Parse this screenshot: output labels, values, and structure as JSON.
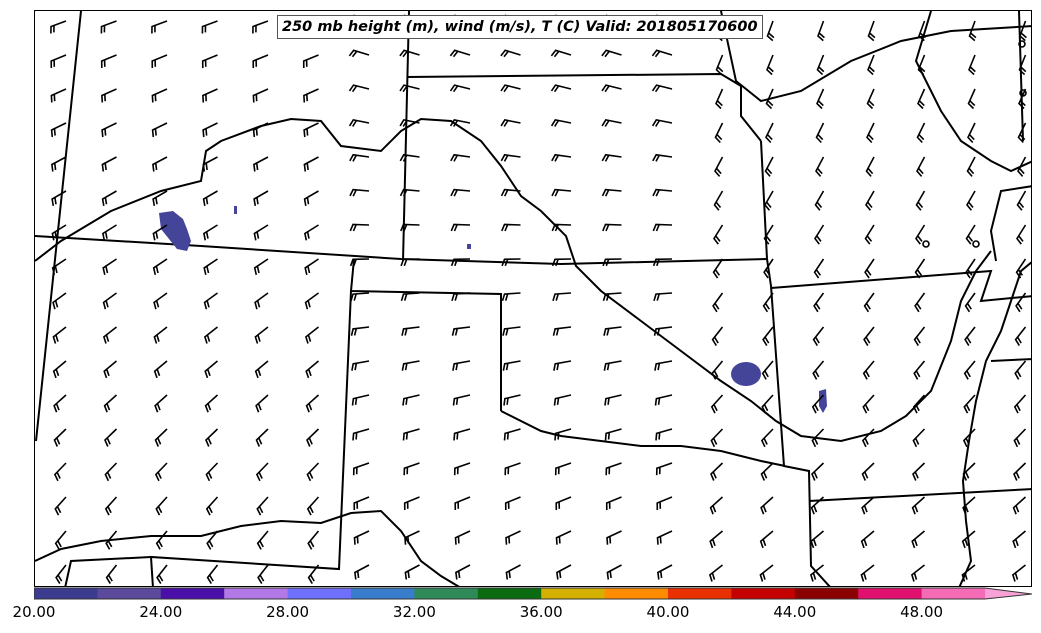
{
  "title": "250 mb height (m), wind (m/s), T (C) Valid: 201805170600",
  "colorbar": {
    "colors": [
      "#3b3b8f",
      "#5b4a9c",
      "#4a0fa8",
      "#b278e6",
      "#7070ff",
      "#3a7ccc",
      "#2e8b57",
      "#0b6b11",
      "#d4b000",
      "#ff8c00",
      "#e83000",
      "#c40000",
      "#8b0000",
      "#e0106f",
      "#f56bb5",
      "#f7a1d6"
    ],
    "tick_labels": [
      "20.00",
      "24.00",
      "28.00",
      "32.00",
      "36.00",
      "40.00",
      "44.00",
      "48.00"
    ]
  },
  "map": {
    "line_color": "#000000",
    "fill_color": "#444499",
    "wind_barbs": "grid of wind barb symbols"
  }
}
